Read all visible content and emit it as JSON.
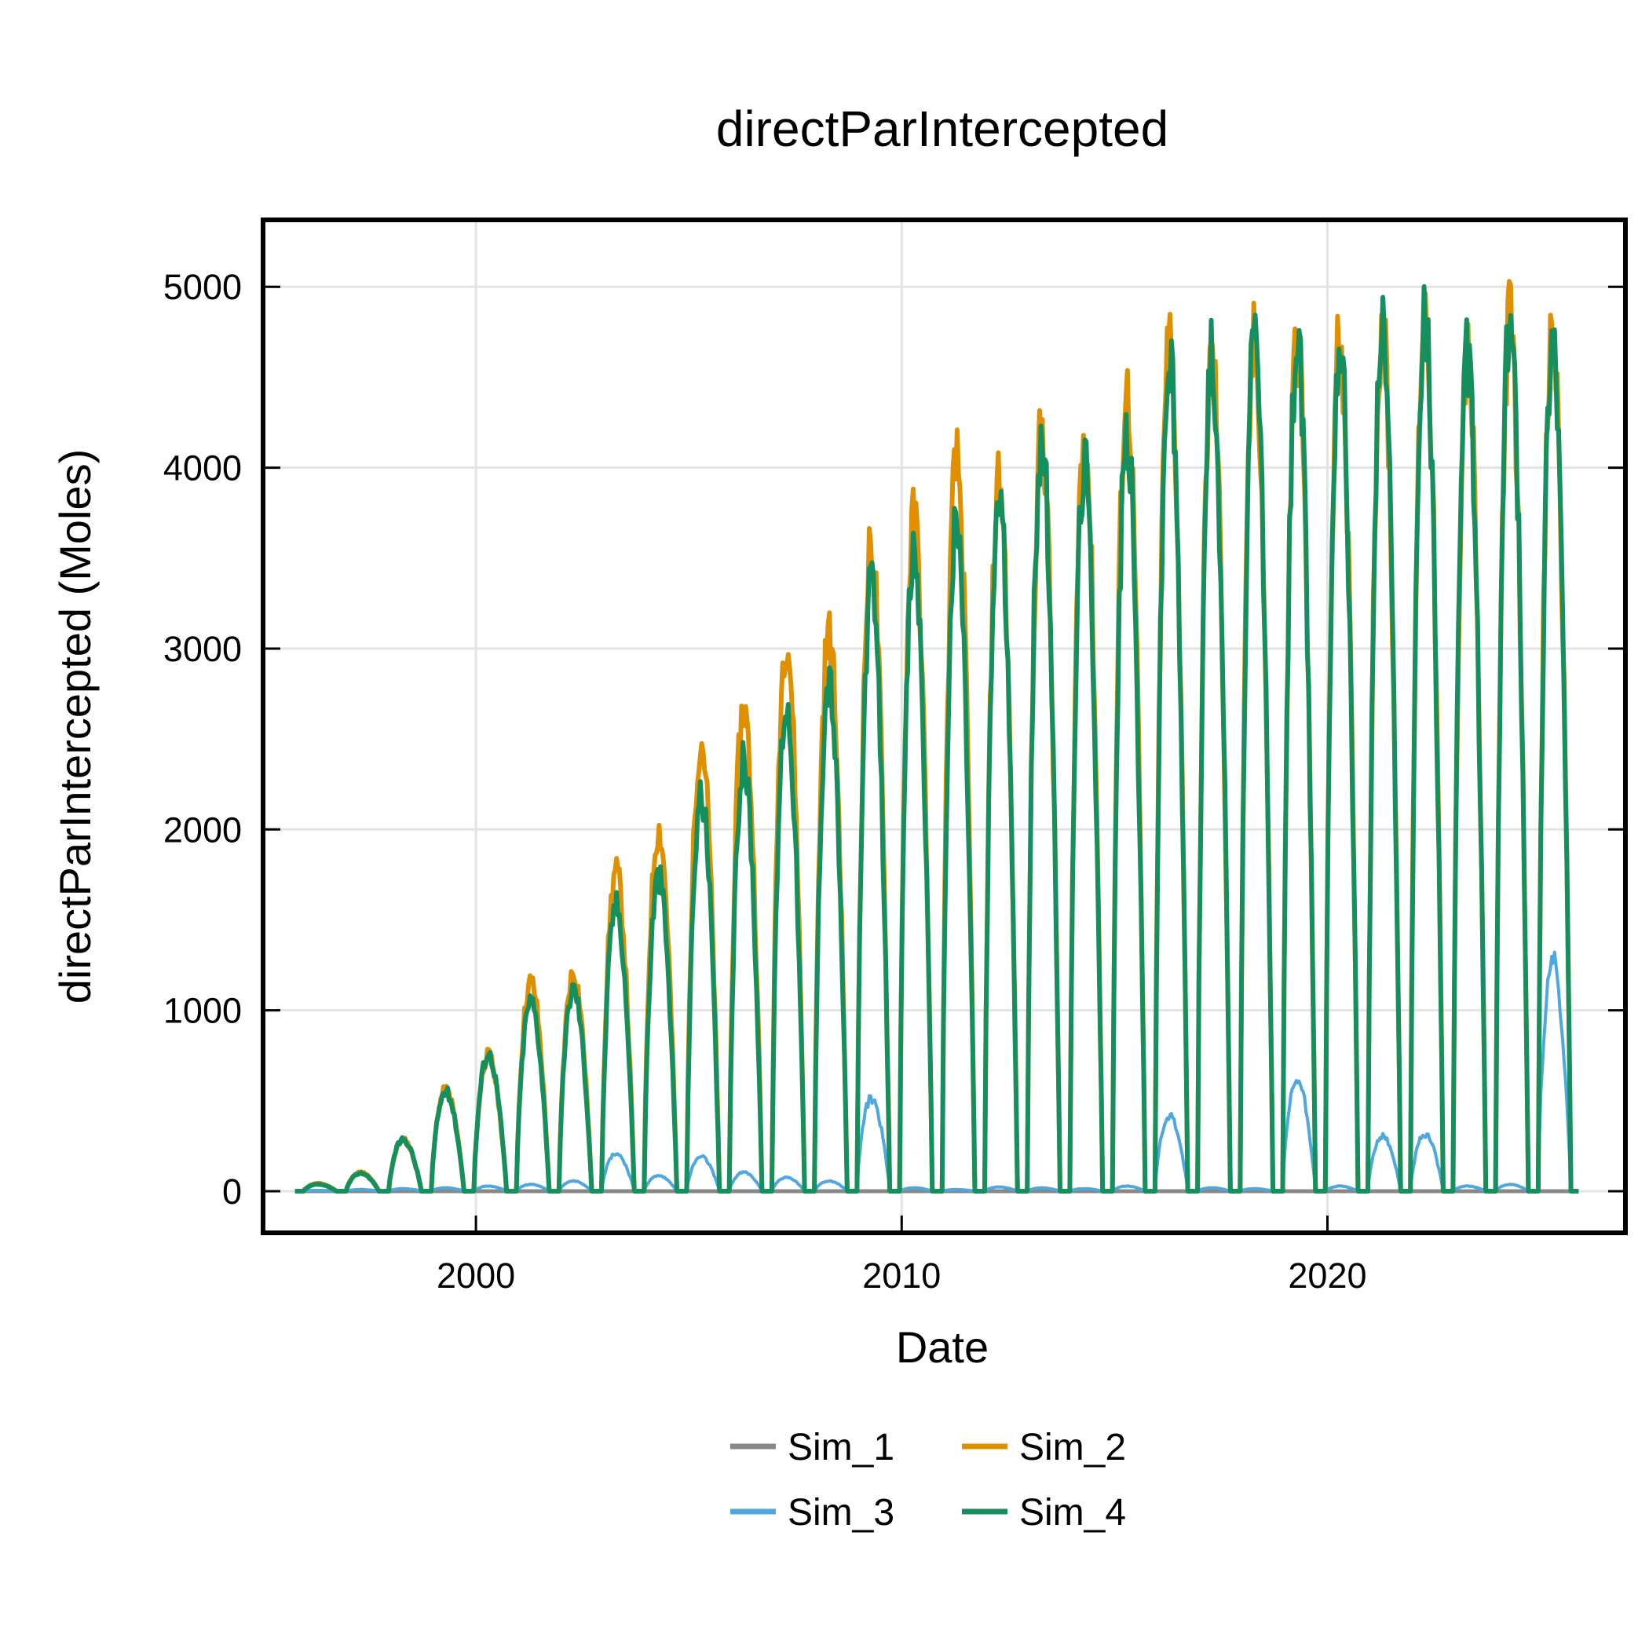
{
  "chart_data": {
    "type": "line",
    "title": "directParIntercepted",
    "xlabel": "Date",
    "ylabel": "directParIntercepted (Moles)",
    "xlim": [
      1995.0,
      2027.0
    ],
    "ylim": [
      -230,
      5370
    ],
    "x_ticks": [
      {
        "value": 2000,
        "label": "2000"
      },
      {
        "value": 2010,
        "label": "2010"
      },
      {
        "value": 2020,
        "label": "2020"
      }
    ],
    "y_ticks": [
      {
        "value": 0,
        "label": "0"
      },
      {
        "value": 1000,
        "label": "1000"
      },
      {
        "value": 2000,
        "label": "2000"
      },
      {
        "value": 3000,
        "label": "3000"
      },
      {
        "value": 4000,
        "label": "4000"
      },
      {
        "value": 5000,
        "label": "5000"
      }
    ],
    "grid": true,
    "legend_position": "bottom-center",
    "legend_columns": 2,
    "series": [
      {
        "name": "Sim_1",
        "color": "#888888"
      },
      {
        "name": "Sim_2",
        "color": "#E08F00"
      },
      {
        "name": "Sim_3",
        "color": "#4DA8E0"
      },
      {
        "name": "Sim_4",
        "color": "#168F5E"
      }
    ],
    "season_peaks": {
      "years": [
        1996,
        1997,
        1998,
        1999,
        2000,
        2001,
        2002,
        2003,
        2004,
        2005,
        2006,
        2007,
        2008,
        2009,
        2010,
        2011,
        2012,
        2013,
        2014,
        2015,
        2016,
        2017,
        2018,
        2019,
        2020,
        2021,
        2022,
        2023,
        2024,
        2025
      ],
      "Sim_2": [
        45,
        110,
        300,
        590,
        790,
        1220,
        1270,
        1860,
        2100,
        2620,
        2810,
        3220,
        3240,
        3750,
        3910,
        4240,
        4150,
        4410,
        4400,
        4640,
        4950,
        4850,
        4940,
        4950,
        4960,
        5040,
        5120,
        4860,
        5070,
        5000
      ],
      "Sim_3": [
        5,
        10,
        15,
        20,
        30,
        40,
        60,
        220,
        90,
        200,
        110,
        80,
        60,
        540,
        20,
        10,
        25,
        20,
        15,
        30,
        440,
        20,
        15,
        650,
        30,
        320,
        330,
        30,
        40,
        1340
      ],
      "Sim_4": [
        40,
        105,
        300,
        580,
        800,
        1110,
        1180,
        1670,
        1830,
        2300,
        2500,
        2830,
        2970,
        3520,
        3720,
        3880,
        4050,
        4370,
        4230,
        4410,
        4820,
        4850,
        4950,
        4950,
        4960,
        5040,
        5070,
        4840,
        5070,
        5020
      ]
    }
  }
}
